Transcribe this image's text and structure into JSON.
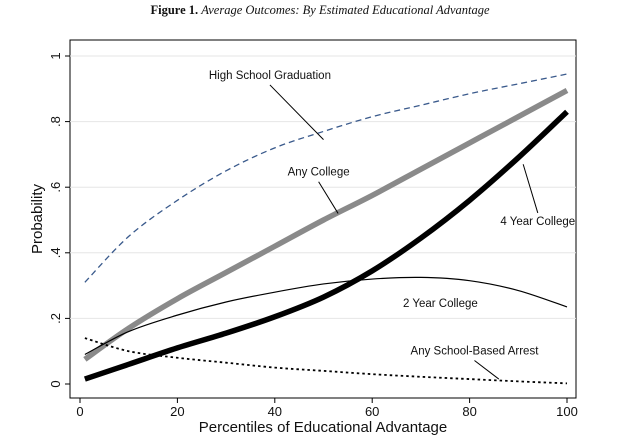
{
  "caption": {
    "label": "Figure 1.",
    "title": "Average Outcomes: By Estimated Educational Advantage"
  },
  "chart_data": {
    "type": "line",
    "title": "",
    "xlabel": "Percentiles of Educational Advantage",
    "ylabel": "Probability",
    "xlim": [
      0,
      100
    ],
    "ylim": [
      0,
      1
    ],
    "x_ticks": [
      0,
      20,
      40,
      60,
      80,
      100
    ],
    "y_ticks": [
      0,
      0.2,
      0.4,
      0.6,
      0.8,
      1
    ],
    "x_tick_labels": [
      "0",
      "20",
      "40",
      "60",
      "80",
      "100"
    ],
    "y_tick_labels": [
      "0",
      ".2",
      ".4",
      ".6",
      ".8",
      "1"
    ],
    "grid": true,
    "legend": "none (inline labels)",
    "series": [
      {
        "name": "High School Graduation",
        "style": "dashed",
        "color": "#3a5a8c",
        "x": [
          1,
          10,
          20,
          30,
          40,
          50,
          60,
          70,
          80,
          90,
          100
        ],
        "y": [
          0.31,
          0.45,
          0.56,
          0.65,
          0.72,
          0.77,
          0.815,
          0.85,
          0.885,
          0.915,
          0.945
        ]
      },
      {
        "name": "Any College",
        "style": "thick",
        "color": "#8a8a8a",
        "x": [
          1,
          10,
          20,
          30,
          40,
          50,
          60,
          70,
          80,
          90,
          100
        ],
        "y": [
          0.075,
          0.17,
          0.26,
          0.34,
          0.42,
          0.5,
          0.575,
          0.655,
          0.735,
          0.815,
          0.895
        ]
      },
      {
        "name": "4 Year College",
        "style": "thick",
        "color": "#000000",
        "x": [
          1,
          10,
          20,
          30,
          40,
          50,
          60,
          70,
          80,
          90,
          100
        ],
        "y": [
          0.015,
          0.06,
          0.11,
          0.155,
          0.205,
          0.265,
          0.345,
          0.445,
          0.56,
          0.69,
          0.83
        ]
      },
      {
        "name": "2 Year College",
        "style": "thin",
        "color": "#000000",
        "x": [
          1,
          10,
          20,
          30,
          40,
          50,
          60,
          70,
          80,
          90,
          100
        ],
        "y": [
          0.09,
          0.16,
          0.21,
          0.25,
          0.28,
          0.305,
          0.32,
          0.325,
          0.315,
          0.285,
          0.235
        ]
      },
      {
        "name": "Any School-Based Arrest",
        "style": "dotted",
        "color": "#000000",
        "x": [
          1,
          10,
          20,
          30,
          40,
          50,
          60,
          70,
          80,
          90,
          100
        ],
        "y": [
          0.14,
          0.1,
          0.08,
          0.065,
          0.05,
          0.04,
          0.03,
          0.022,
          0.015,
          0.008,
          0.002
        ]
      }
    ],
    "annotations": [
      {
        "series": "High School Graduation",
        "text": "High School Graduation",
        "label_x": 39,
        "label_y": 0.93,
        "point_x": 50,
        "point_y": 0.745
      },
      {
        "series": "Any College",
        "text": "Any College",
        "label_x": 49,
        "label_y": 0.635,
        "point_x": 53,
        "point_y": 0.52
      },
      {
        "series": "4 Year College",
        "text": "4 Year College",
        "label_x": 94,
        "label_y": 0.485,
        "point_x": 91,
        "point_y": 0.67
      },
      {
        "series": "2 Year College",
        "text": "2 Year College",
        "label_x": 74,
        "label_y": 0.235,
        "point_x": 0,
        "point_y": 0
      },
      {
        "series": "Any School-Based Arrest",
        "text": "Any School-Based Arrest",
        "label_x": 81,
        "label_y": 0.09,
        "point_x": 86,
        "point_y": 0.015
      }
    ]
  }
}
